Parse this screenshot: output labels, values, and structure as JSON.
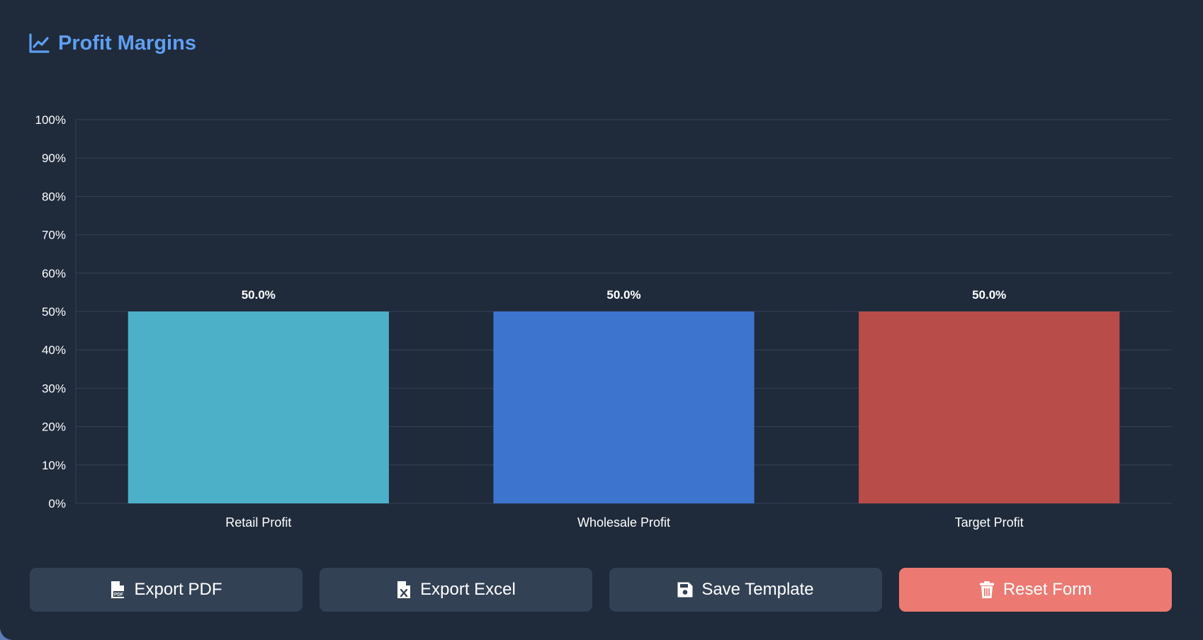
{
  "header": {
    "title": "Profit Margins",
    "icon": "line-chart-icon"
  },
  "chart_data": {
    "type": "bar",
    "categories": [
      "Retail Profit",
      "Wholesale Profit",
      "Target Profit"
    ],
    "values": [
      50.0,
      50.0,
      50.0
    ],
    "value_labels": [
      "50.0%",
      "50.0%",
      "50.0%"
    ],
    "colors": [
      "#4cb0c9",
      "#3d74ce",
      "#b84c48"
    ],
    "ylim": [
      0,
      100
    ],
    "yticks": [
      0,
      10,
      20,
      30,
      40,
      50,
      60,
      70,
      80,
      90,
      100
    ],
    "ytick_labels": [
      "0%",
      "10%",
      "20%",
      "30%",
      "40%",
      "50%",
      "60%",
      "70%",
      "80%",
      "90%",
      "100%"
    ],
    "grid": true,
    "title": "",
    "xlabel": "",
    "ylabel": ""
  },
  "actions": {
    "export_pdf": "Export PDF",
    "export_excel": "Export Excel",
    "save_template": "Save Template",
    "reset_form": "Reset Form"
  },
  "colors": {
    "background": "#1f2a3b",
    "accent": "#5f9ff0",
    "button": "#334155",
    "danger": "#ec7a72"
  }
}
